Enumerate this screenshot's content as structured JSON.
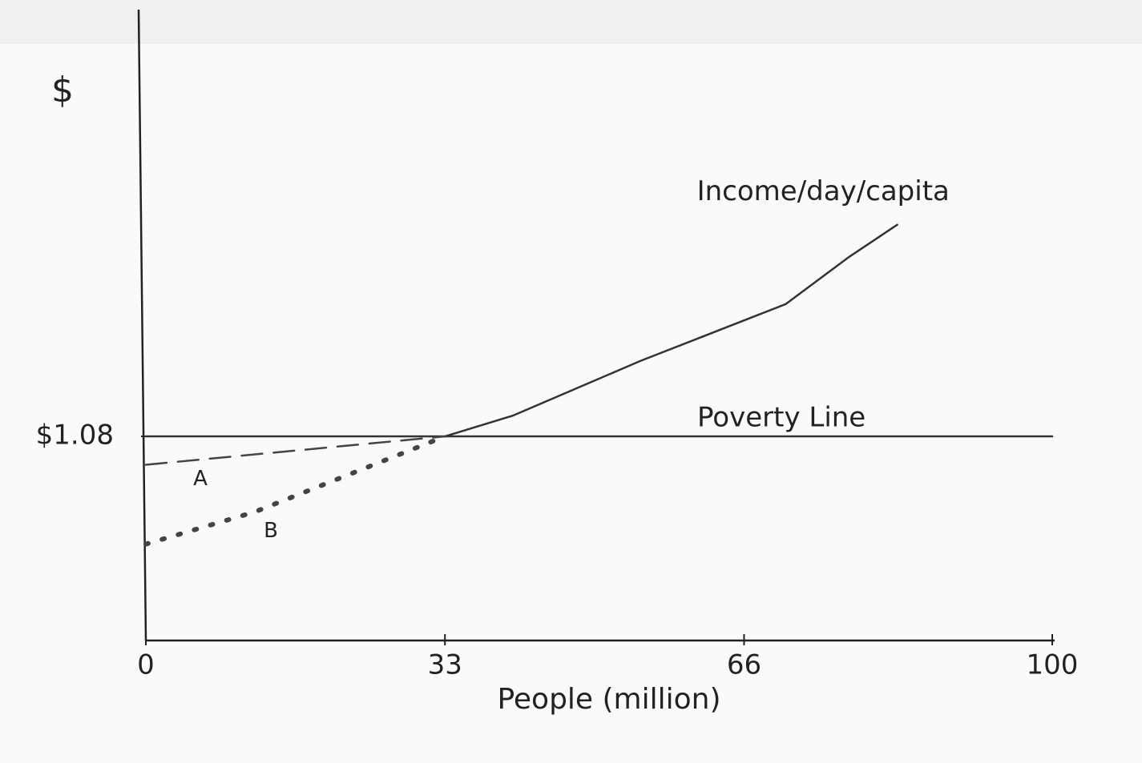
{
  "chart_data": {
    "type": "line",
    "x_label": "People (million)",
    "y_label": "$",
    "xlim": [
      0,
      100
    ],
    "xticks": [
      0,
      33,
      66,
      100
    ],
    "ylim": [
      0,
      3.3
    ],
    "yticks": [
      {
        "value": 1.08,
        "label": "$1.08"
      }
    ],
    "series": [
      {
        "name": "Income/day/capita",
        "color": "#333333",
        "style": "solid",
        "x": [
          33,
          40.5,
          54.6,
          70.6,
          77.6,
          82.9
        ],
        "values": [
          1.08,
          1.19,
          1.48,
          1.78,
          2.03,
          2.2
        ]
      },
      {
        "name": "Poverty Line",
        "color": "#333333",
        "style": "solid",
        "x": [
          0,
          100
        ],
        "values": [
          1.08,
          1.08
        ]
      },
      {
        "name": "A",
        "color": "#444444",
        "style": "dashed",
        "x": [
          0,
          33
        ],
        "values": [
          0.93,
          1.08
        ]
      },
      {
        "name": "B",
        "color": "#444444",
        "style": "dotted",
        "x": [
          0,
          12,
          33
        ],
        "values": [
          0.51,
          0.68,
          1.08
        ]
      }
    ]
  }
}
